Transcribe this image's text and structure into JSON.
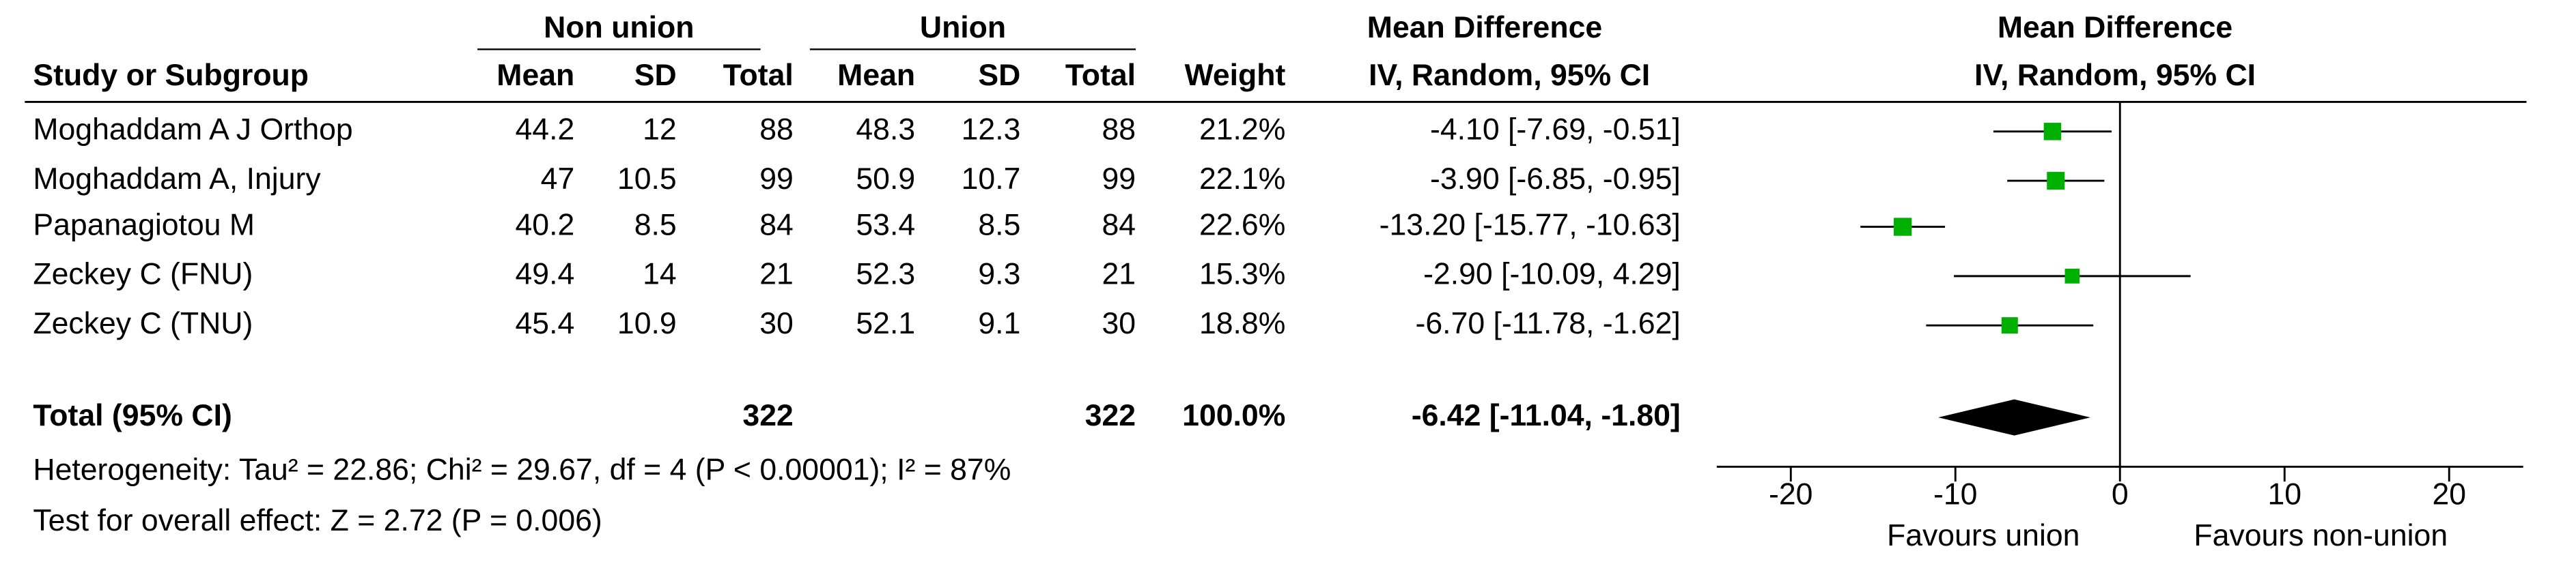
{
  "chart_data": {
    "type": "forest",
    "group_headers": [
      "Non union",
      "Union",
      "Mean Difference",
      "Mean Difference"
    ],
    "method_headers": [
      "IV, Random, 95% CI",
      "IV, Random, 95% CI"
    ],
    "columns": [
      "Study or Subgroup",
      "Mean",
      "SD",
      "Total",
      "Mean",
      "SD",
      "Total",
      "Weight"
    ],
    "studies": [
      {
        "name": "Moghaddam A J Orthop",
        "mean1": 44.2,
        "sd1": 12,
        "n1": 88,
        "mean2": 48.3,
        "sd2": 12.3,
        "n2": 88,
        "weight": 21.2,
        "weight_label": "21.2%",
        "md": -4.1,
        "lower": -7.69,
        "upper": -0.51,
        "ci_label": "-4.10 [-7.69, -0.51]"
      },
      {
        "name": "Moghaddam A, Injury",
        "mean1": 47,
        "sd1": 10.5,
        "n1": 99,
        "mean2": 50.9,
        "sd2": 10.7,
        "n2": 99,
        "weight": 22.1,
        "weight_label": "22.1%",
        "md": -3.9,
        "lower": -6.85,
        "upper": -0.95,
        "ci_label": "-3.90 [-6.85, -0.95]"
      },
      {
        "name": "Papanagiotou M",
        "mean1": 40.2,
        "sd1": 8.5,
        "n1": 84,
        "mean2": 53.4,
        "sd2": 8.5,
        "n2": 84,
        "weight": 22.6,
        "weight_label": "22.6%",
        "md": -13.2,
        "lower": -15.77,
        "upper": -10.63,
        "ci_label": "-13.20 [-15.77, -10.63]"
      },
      {
        "name": "Zeckey C (FNU)",
        "mean1": 49.4,
        "sd1": 14,
        "n1": 21,
        "mean2": 52.3,
        "sd2": 9.3,
        "n2": 21,
        "weight": 15.3,
        "weight_label": "15.3%",
        "md": -2.9,
        "lower": -10.09,
        "upper": 4.29,
        "ci_label": "-2.90 [-10.09, 4.29]"
      },
      {
        "name": "Zeckey C (TNU)",
        "mean1": 45.4,
        "sd1": 10.9,
        "n1": 30,
        "mean2": 52.1,
        "sd2": 9.1,
        "n2": 30,
        "weight": 18.8,
        "weight_label": "18.8%",
        "md": -6.7,
        "lower": -11.78,
        "upper": -1.62,
        "ci_label": "-6.70 [-11.78, -1.62]"
      }
    ],
    "total": {
      "name": "Total (95% CI)",
      "n1": 322,
      "n2": 322,
      "weight": 100,
      "weight_label": "100.0%",
      "md": -6.42,
      "lower": -11.04,
      "upper": -1.8,
      "ci_label": "-6.42 [-11.04, -1.80]"
    },
    "heterogeneity": "Heterogeneity: Tau² = 22.86; Chi² = 29.67, df = 4 (P < 0.00001); I² = 87%",
    "overall_effect": "Test for overall effect: Z = 2.72 (P = 0.006)",
    "xlim": [
      -24.5,
      24.5
    ],
    "xticks": [
      -20,
      -10,
      0,
      10,
      20
    ],
    "favours_left": "Favours union",
    "favours_right": "Favours non-union",
    "square_color": "#00b000",
    "diamond_color": "#000000"
  }
}
